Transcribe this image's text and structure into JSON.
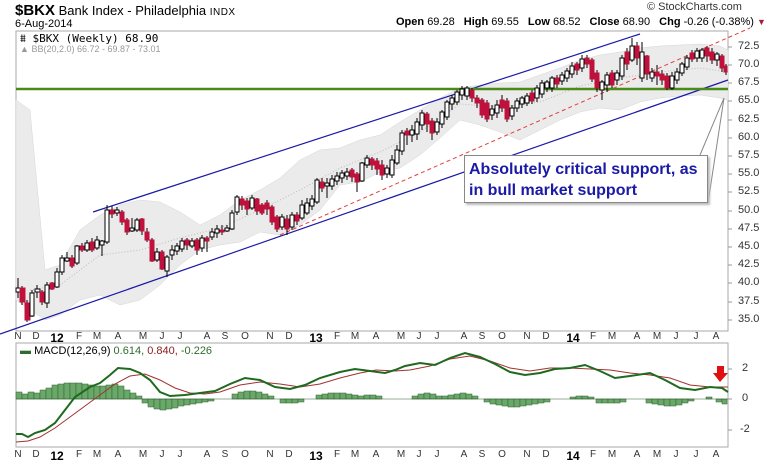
{
  "header": {
    "symbol": "$BKX",
    "name": "Bank Index - Philadelphia",
    "exchange": "INDX",
    "date": "6-Aug-2014",
    "copyright": "© StockCharts.com",
    "ohlc": {
      "open_label": "Open",
      "open": "69.28",
      "high_label": "High",
      "high": "69.55",
      "low_label": "Low",
      "low": "68.52",
      "close_label": "Close",
      "close": "68.90",
      "chg_label": "Chg",
      "chg": "-0.26 (-0.38%)",
      "chg_direction_icon": "down-triangle-icon"
    }
  },
  "price_panel": {
    "legend_main": "$BKX (Weekly) 68.90",
    "legend_bb": "BB(20,2.0) 66.72 - 69.87 - 73.01",
    "y_ticks": [
      "72.5",
      "70.0",
      "67.5",
      "65.0",
      "62.5",
      "60.0",
      "57.5",
      "55.0",
      "52.5",
      "50.0",
      "47.5",
      "45.0",
      "42.5",
      "40.0",
      "37.5",
      "35.0"
    ],
    "annotation": "Absolutely critical support, as in bull market support"
  },
  "macd_panel": {
    "legend_label": "MACD(12,26,9)",
    "macd_value": "0.614,",
    "signal_value": "0.840,",
    "hist_value": "-0.226",
    "y_ticks": [
      "2",
      "0",
      "-2"
    ]
  },
  "x_axis": {
    "labels": [
      "N",
      "D",
      "12",
      "F",
      "M",
      "A",
      "M",
      "J",
      "J",
      "A",
      "S",
      "O",
      "N",
      "D",
      "13",
      "F",
      "M",
      "A",
      "M",
      "J",
      "J",
      "A",
      "S",
      "O",
      "N",
      "D",
      "14",
      "F",
      "M",
      "A",
      "M",
      "J",
      "J",
      "A"
    ],
    "positions": [
      18,
      36,
      57,
      79,
      97,
      118,
      143,
      162,
      180,
      207,
      225,
      245,
      270,
      289,
      316,
      337,
      355,
      376,
      401,
      419,
      437,
      464,
      482,
      502,
      527,
      546,
      573,
      593,
      612,
      637,
      657,
      676,
      696,
      716
    ]
  },
  "colors": {
    "up_candle": "#ffffff",
    "down_candle": "#c0103c",
    "candle_outline": "#000000",
    "channel": "#1a1aa6",
    "midline": "#e04040",
    "support": "#4a8a1a",
    "bb_fill": "#e8e8e8",
    "macd": "#1f6a1f",
    "signal": "#a33030",
    "histogram": "#6aa86a"
  },
  "chart_data": [
    {
      "type": "candlestick",
      "title": "$BKX Bank Index - Philadelphia INDX (Weekly)",
      "xlabel": "",
      "ylabel": "",
      "ylim": [
        33.5,
        74.5
      ],
      "x_range": [
        "Nov 2011",
        "Aug 2014"
      ],
      "series": [
        {
          "name": "$BKX weekly close (approx)",
          "x": [
            "2011-11",
            "2011-12",
            "2012-01",
            "2012-02",
            "2012-03",
            "2012-04",
            "2012-05",
            "2012-06",
            "2012-07",
            "2012-08",
            "2012-09",
            "2012-10",
            "2012-11",
            "2012-12",
            "2013-01",
            "2013-02",
            "2013-03",
            "2013-04",
            "2013-05",
            "2013-06",
            "2013-07",
            "2013-08",
            "2013-09",
            "2013-10",
            "2013-11",
            "2013-12",
            "2014-01",
            "2014-02",
            "2014-03",
            "2014-04",
            "2014-05",
            "2014-06",
            "2014-07",
            "2014-08"
          ],
          "values": [
            38.5,
            40.0,
            44.5,
            47.0,
            50.0,
            48.5,
            42.5,
            44.0,
            46.0,
            46.5,
            51.5,
            50.5,
            48.0,
            52.0,
            55.0,
            57.0,
            58.0,
            56.0,
            62.0,
            60.0,
            66.0,
            63.0,
            63.5,
            64.5,
            67.5,
            68.5,
            70.5,
            68.0,
            73.5,
            68.5,
            67.5,
            71.5,
            70.5,
            68.9
          ]
        },
        {
          "name": "Upper channel",
          "values": [
            [
              "2012-03",
              50.0
            ],
            [
              "2014-03",
              74.0
            ]
          ]
        },
        {
          "name": "Lower channel",
          "values": [
            [
              "2011-11",
              34.5
            ],
            [
              "2014-08",
              67.5
            ]
          ]
        },
        {
          "name": "Midline (dashed)",
          "values": [
            [
              "2012-11",
              47.0
            ],
            [
              "2014-08",
              74.5
            ]
          ]
        },
        {
          "name": "Support (horizontal)",
          "values": [
            66.5
          ]
        }
      ],
      "legend": [
        "$BKX (Weekly) 68.90",
        "BB(20,2.0) 66.72 - 69.87 - 73.01"
      ],
      "annotations": [
        "Absolutely critical support, as in bull market support"
      ],
      "grid": false
    },
    {
      "type": "line",
      "title": "MACD(12,26,9) 0.614, 0.840, -0.226",
      "ylim": [
        -3.2,
        3.8
      ],
      "y_ticks": [
        2,
        0,
        -2
      ],
      "series": [
        {
          "name": "MACD",
          "values": [
            -2.4,
            -2.0,
            -0.8,
            0.5,
            1.5,
            2.6,
            2.4,
            0.6,
            0.6,
            0.8,
            1.6,
            1.6,
            1.2,
            1.5,
            2.1,
            2.7,
            2.3,
            2.2,
            1.7,
            2.6,
            3.2,
            2.4,
            1.5,
            1.5,
            1.8,
            1.9,
            2.2,
            1.6,
            1.7,
            1.6,
            0.5,
            0.7,
            1.0,
            0.6
          ]
        },
        {
          "name": "Signal",
          "values": [
            -2.6,
            -2.4,
            -1.6,
            -0.2,
            0.9,
            1.8,
            2.2,
            1.2,
            0.7,
            0.7,
            1.3,
            1.4,
            1.2,
            1.3,
            1.8,
            2.4,
            2.3,
            2.2,
            1.9,
            2.2,
            2.8,
            2.6,
            2.0,
            1.7,
            1.8,
            1.9,
            2.0,
            1.8,
            1.7,
            1.6,
            1.0,
            0.8,
            0.8,
            0.8
          ]
        },
        {
          "name": "Histogram",
          "values": [
            0.2,
            0.4,
            0.8,
            0.9,
            0.6,
            0.3,
            -0.4,
            -0.6,
            0.0,
            0.1,
            0.4,
            0.2,
            -0.2,
            0.2,
            0.3,
            0.3,
            0.0,
            0.0,
            -0.2,
            0.3,
            0.4,
            -0.2,
            -0.5,
            -0.2,
            0.0,
            0.0,
            0.2,
            -0.2,
            0.0,
            0.0,
            -0.5,
            -0.1,
            0.2,
            -0.2
          ]
        }
      ],
      "annotations": [
        "red down arrow at Jul 2014 (bearish crossover)"
      ]
    }
  ]
}
